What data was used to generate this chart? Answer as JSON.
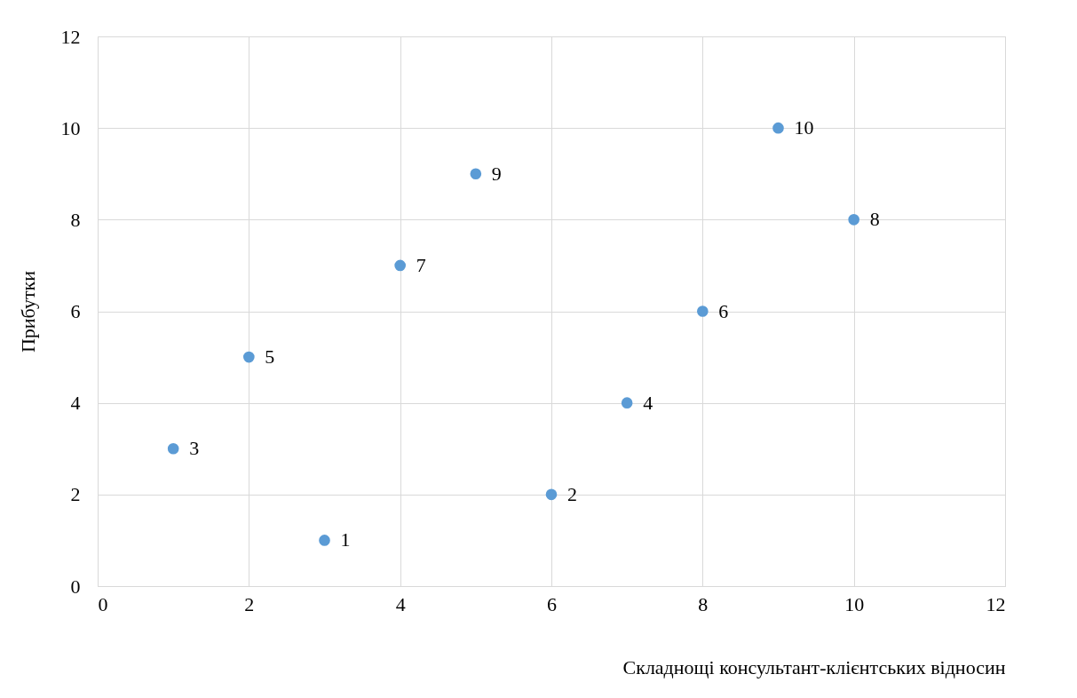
{
  "chart_data": {
    "type": "scatter",
    "xlabel": "Складнощі консультант-клієнтських відносин",
    "ylabel": "Прибутки",
    "x": [
      3,
      6,
      1,
      7,
      2,
      8,
      4,
      10,
      5,
      9
    ],
    "series": [
      {
        "color": "#5b9bd5",
        "values": [
          1,
          2,
          3,
          4,
          5,
          6,
          7,
          8,
          9,
          10
        ]
      }
    ],
    "xlim": [
      0,
      12
    ],
    "xticks": [
      0,
      2,
      4,
      6,
      8,
      10,
      12
    ],
    "ylim": [
      0,
      12
    ],
    "yticks": [
      0,
      2,
      4,
      6,
      8,
      10,
      12
    ],
    "grid": true,
    "data_labels": true,
    "marker": "circle"
  }
}
